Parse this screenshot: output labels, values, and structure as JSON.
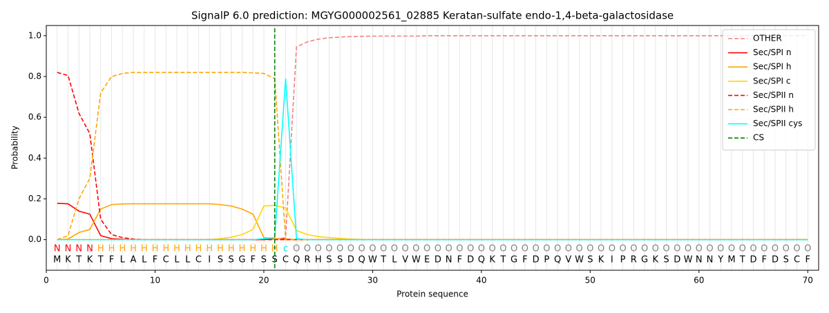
{
  "chart_data": {
    "type": "line",
    "title": "SignalP 6.0 prediction: MGYG000002561_02885 Keratan-sulfate endo-1,4-beta-galactosidase",
    "xlabel": "Protein sequence",
    "ylabel": "Probability",
    "xlim": [
      0,
      71
    ],
    "ylim": [
      -0.15,
      1.05
    ],
    "xticks": [
      0,
      10,
      20,
      30,
      40,
      50,
      60,
      70
    ],
    "yticks": [
      {
        "value": 0,
        "label": "0.0"
      },
      0.2,
      0.4,
      0.6,
      0.8,
      {
        "value": 1,
        "label": "1.0"
      }
    ],
    "legend": "upper right",
    "grid": true,
    "x": [
      1,
      2,
      3,
      4,
      5,
      6,
      7,
      8,
      9,
      10,
      11,
      12,
      13,
      14,
      15,
      16,
      17,
      18,
      19,
      20,
      21,
      22,
      23,
      24,
      25,
      26,
      27,
      28,
      29,
      30,
      31,
      32,
      33,
      34,
      35,
      36,
      37,
      38,
      39,
      40,
      41,
      42,
      43,
      44,
      45,
      46,
      47,
      48,
      49,
      50,
      51,
      52,
      53,
      54,
      55,
      56,
      57,
      58,
      59,
      60,
      61,
      62,
      63,
      64,
      65,
      66,
      67,
      68,
      69,
      70
    ],
    "sequence": [
      "M",
      "K",
      "T",
      "K",
      "T",
      "F",
      "L",
      "A",
      "L",
      "F",
      "C",
      "L",
      "L",
      "C",
      "I",
      "S",
      "S",
      "G",
      "F",
      "S",
      "S",
      "C",
      "Q",
      "R",
      "H",
      "S",
      "S",
      "D",
      "Q",
      "W",
      "T",
      "L",
      "V",
      "W",
      "E",
      "D",
      "N",
      "F",
      "D",
      "Q",
      "K",
      "T",
      "G",
      "F",
      "D",
      "P",
      "Q",
      "V",
      "W",
      "S",
      "K",
      "I",
      "P",
      "R",
      "G",
      "K",
      "S",
      "D",
      "W",
      "N",
      "N",
      "Y",
      "M",
      "T",
      "D",
      "F",
      "D",
      "S",
      "C",
      "F"
    ],
    "region_labels": [
      "N",
      "N",
      "N",
      "N",
      "H",
      "H",
      "H",
      "H",
      "H",
      "H",
      "H",
      "H",
      "H",
      "H",
      "H",
      "H",
      "H",
      "H",
      "H",
      "H",
      "H",
      "c",
      "O",
      "O",
      "O",
      "O",
      "O",
      "O",
      "O",
      "O",
      "O",
      "O",
      "O",
      "O",
      "O",
      "O",
      "O",
      "O",
      "O",
      "O",
      "O",
      "O",
      "O",
      "O",
      "O",
      "O",
      "O",
      "O",
      "O",
      "O",
      "O",
      "O",
      "O",
      "O",
      "O",
      "O",
      "O",
      "O",
      "O",
      "O",
      "O",
      "O",
      "O",
      "O",
      "O",
      "O",
      "O",
      "O",
      "O",
      "O"
    ],
    "region_colors": {
      "N": "#ff0000",
      "H": "#ffa500",
      "c": "#00e5ee",
      "O": "#808080"
    },
    "series": [
      {
        "name": "OTHER",
        "color": "#f08080",
        "dashed": true,
        "values": [
          0,
          0,
          0,
          0,
          0,
          0,
          0,
          0,
          0,
          0,
          0,
          0,
          0,
          0,
          0,
          0,
          0,
          0,
          0,
          0,
          0,
          0.01,
          0.945,
          0.97,
          0.983,
          0.99,
          0.993,
          0.996,
          0.997,
          0.998,
          0.998,
          0.998,
          0.998,
          0.998,
          1,
          1,
          1,
          1,
          1,
          1,
          1,
          1,
          1,
          1,
          1,
          1,
          1,
          1,
          1,
          1,
          1,
          1,
          1,
          1,
          1,
          1,
          1,
          1,
          1,
          1,
          1,
          1,
          1,
          1,
          1,
          1,
          1,
          1,
          1,
          1
        ]
      },
      {
        "name": "Sec/SPI n",
        "color": "#ff0000",
        "dashed": false,
        "values": [
          0.178,
          0.176,
          0.14,
          0.125,
          0.02,
          0.005,
          0.002,
          0,
          0,
          0,
          0,
          0,
          0,
          0,
          0,
          0,
          0,
          0,
          0,
          0,
          0.005,
          0.003,
          0,
          0,
          0,
          0,
          0,
          0,
          0,
          0,
          0,
          0,
          0,
          0,
          0,
          0,
          0,
          0,
          0,
          0,
          0,
          0,
          0,
          0,
          0,
          0,
          0,
          0,
          0,
          0,
          0,
          0,
          0,
          0,
          0,
          0,
          0,
          0,
          0,
          0,
          0,
          0,
          0,
          0,
          0,
          0,
          0,
          0,
          0,
          0
        ]
      },
      {
        "name": "Sec/SPI h",
        "color": "#ffa500",
        "dashed": false,
        "values": [
          0,
          0.003,
          0.035,
          0.05,
          0.15,
          0.172,
          0.175,
          0.176,
          0.176,
          0.176,
          0.176,
          0.176,
          0.176,
          0.176,
          0.176,
          0.172,
          0.165,
          0.15,
          0.125,
          0.01,
          0.005,
          0,
          0,
          0,
          0,
          0,
          0,
          0,
          0,
          0,
          0,
          0,
          0,
          0,
          0,
          0,
          0,
          0,
          0,
          0,
          0,
          0,
          0,
          0,
          0,
          0,
          0,
          0,
          0,
          0,
          0,
          0,
          0,
          0,
          0,
          0,
          0,
          0,
          0,
          0,
          0,
          0,
          0,
          0,
          0,
          0,
          0,
          0,
          0,
          0
        ]
      },
      {
        "name": "Sec/SPI c",
        "color": "#ffd700",
        "dashed": false,
        "values": [
          0,
          0,
          0,
          0,
          0,
          0,
          0,
          0,
          0,
          0,
          0,
          0,
          0,
          0,
          0,
          0.005,
          0.012,
          0.025,
          0.05,
          0.165,
          0.168,
          0.155,
          0.045,
          0.025,
          0.015,
          0.01,
          0.006,
          0.003,
          0.001,
          0,
          0,
          0,
          0,
          0,
          0,
          0,
          0,
          0,
          0,
          0,
          0,
          0,
          0,
          0,
          0,
          0,
          0,
          0,
          0,
          0,
          0,
          0,
          0,
          0,
          0,
          0,
          0,
          0,
          0,
          0,
          0,
          0,
          0,
          0,
          0,
          0,
          0,
          0,
          0,
          0
        ]
      },
      {
        "name": "Sec/SPII n",
        "color": "#ff0000",
        "dashed": true,
        "values": [
          0.82,
          0.805,
          0.62,
          0.52,
          0.1,
          0.025,
          0.01,
          0.003,
          0,
          0,
          0,
          0,
          0,
          0,
          0,
          0,
          0,
          0,
          0,
          0,
          0,
          0,
          0,
          0,
          0,
          0,
          0,
          0,
          0,
          0,
          0,
          0,
          0,
          0,
          0,
          0,
          0,
          0,
          0,
          0,
          0,
          0,
          0,
          0,
          0,
          0,
          0,
          0,
          0,
          0,
          0,
          0,
          0,
          0,
          0,
          0,
          0,
          0,
          0,
          0,
          0,
          0,
          0,
          0,
          0,
          0,
          0,
          0,
          0,
          0
        ]
      },
      {
        "name": "Sec/SPII h",
        "color": "#ffa500",
        "dashed": true,
        "values": [
          0,
          0.02,
          0.2,
          0.3,
          0.72,
          0.8,
          0.815,
          0.82,
          0.82,
          0.82,
          0.82,
          0.82,
          0.82,
          0.82,
          0.82,
          0.82,
          0.82,
          0.82,
          0.818,
          0.815,
          0.79,
          0.005,
          0,
          0,
          0,
          0,
          0,
          0,
          0,
          0,
          0,
          0,
          0,
          0,
          0,
          0,
          0,
          0,
          0,
          0,
          0,
          0,
          0,
          0,
          0,
          0,
          0,
          0,
          0,
          0,
          0,
          0,
          0,
          0,
          0,
          0,
          0,
          0,
          0,
          0,
          0,
          0,
          0,
          0,
          0,
          0,
          0,
          0,
          0,
          0
        ]
      },
      {
        "name": "Sec/SPII cys",
        "color": "#00ffff",
        "dashed": false,
        "values": [
          0,
          0,
          0,
          0,
          0,
          0,
          0,
          0,
          0,
          0,
          0,
          0,
          0,
          0,
          0,
          0,
          0,
          0,
          0,
          0.005,
          0.01,
          0.79,
          0.005,
          0,
          0,
          0,
          0,
          0,
          0,
          0,
          0,
          0,
          0,
          0,
          0,
          0,
          0,
          0,
          0,
          0,
          0,
          0,
          0,
          0,
          0,
          0,
          0,
          0,
          0,
          0,
          0,
          0,
          0,
          0,
          0,
          0,
          0,
          0,
          0,
          0,
          0,
          0,
          0,
          0,
          0,
          0,
          0,
          0,
          0,
          0
        ]
      }
    ],
    "cs": {
      "name": "CS",
      "color": "#008000",
      "x": 21
    }
  }
}
